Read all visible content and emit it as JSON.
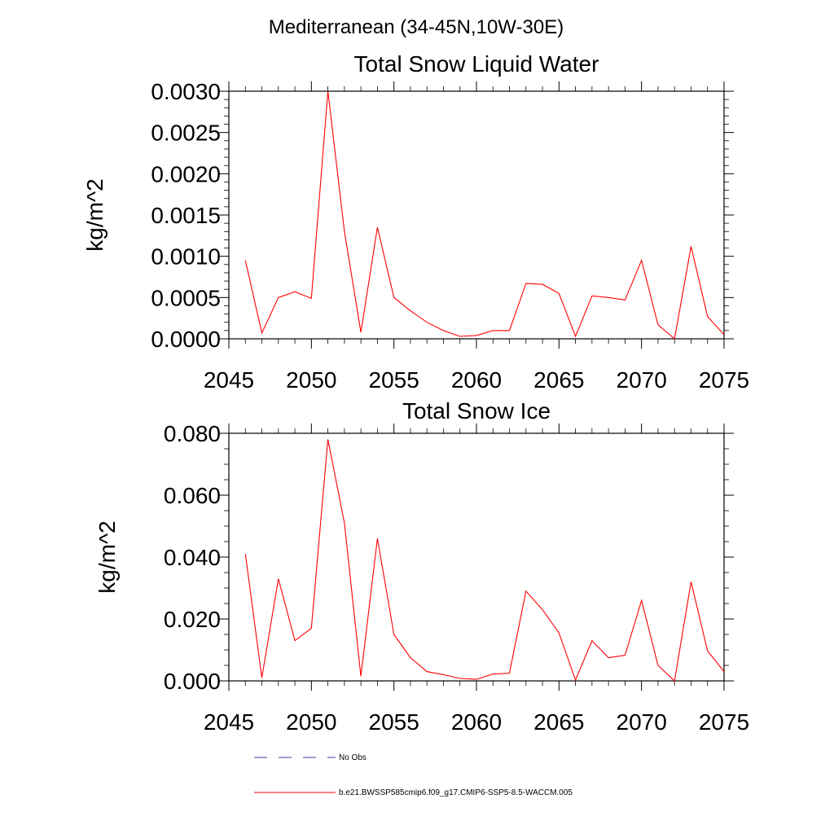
{
  "figure_title": "Mediterranean (34-45N,10W-30E)",
  "chart_data": [
    {
      "type": "line",
      "title": "Total Snow Liquid Water",
      "xlabel": "",
      "ylabel": "kg/m^2",
      "xlim": [
        2045,
        2075
      ],
      "ylim": [
        0,
        0.003
      ],
      "xticks": [
        "2045",
        "2050",
        "2055",
        "2060",
        "2065",
        "2070",
        "2075"
      ],
      "yticks": [
        "0.0000",
        "0.0005",
        "0.0010",
        "0.0015",
        "0.0020",
        "0.0025",
        "0.0030"
      ],
      "series": [
        {
          "name": "b.e21.BWSSP585cmip6.f09_g17.CMIP6-SSP5-8.5-WACCM.005",
          "color": "#ff0000",
          "x": [
            2046,
            2047,
            2048,
            2049,
            2050,
            2051,
            2052,
            2053,
            2054,
            2055,
            2056,
            2057,
            2058,
            2059,
            2060,
            2061,
            2062,
            2063,
            2064,
            2065,
            2066,
            2067,
            2068,
            2069,
            2070,
            2071,
            2072,
            2073,
            2074,
            2075
          ],
          "values": [
            0.00095,
            7e-05,
            0.0005,
            0.00057,
            0.00049,
            0.003,
            0.0013,
            8e-05,
            0.00135,
            0.0005,
            0.00034,
            0.0002,
            0.0001,
            3e-05,
            4e-05,
            0.0001,
            0.0001,
            0.00067,
            0.00066,
            0.00055,
            3e-05,
            0.00052,
            0.0005,
            0.00047,
            0.00095,
            0.00017,
            0.0,
            0.00112,
            0.00027,
            5e-05
          ]
        }
      ]
    },
    {
      "type": "line",
      "title": "Total Snow Ice",
      "xlabel": "",
      "ylabel": "kg/m^2",
      "xlim": [
        2045,
        2075
      ],
      "ylim": [
        0,
        0.08
      ],
      "xticks": [
        "2045",
        "2050",
        "2055",
        "2060",
        "2065",
        "2070",
        "2075"
      ],
      "yticks": [
        "0.000",
        "0.020",
        "0.040",
        "0.060",
        "0.080"
      ],
      "series": [
        {
          "name": "b.e21.BWSSP585cmip6.f09_g17.CMIP6-SSP5-8.5-WACCM.005",
          "color": "#ff0000",
          "x": [
            2046,
            2047,
            2048,
            2049,
            2050,
            2051,
            2052,
            2053,
            2054,
            2055,
            2056,
            2057,
            2058,
            2059,
            2060,
            2061,
            2062,
            2063,
            2064,
            2065,
            2066,
            2067,
            2068,
            2069,
            2070,
            2071,
            2072,
            2073,
            2074,
            2075
          ],
          "values": [
            0.041,
            0.001,
            0.033,
            0.013,
            0.017,
            0.078,
            0.051,
            0.0015,
            0.046,
            0.015,
            0.0075,
            0.003,
            0.002,
            0.0008,
            0.0005,
            0.0022,
            0.0025,
            0.029,
            0.023,
            0.0155,
            0.0003,
            0.013,
            0.0075,
            0.0083,
            0.026,
            0.005,
            0.0,
            0.032,
            0.0097,
            0.003
          ]
        }
      ]
    }
  ],
  "legend": [
    {
      "label": "No Obs",
      "color": "#3b3b99",
      "dash": "dashed"
    },
    {
      "label": "b.e21.BWSSP585cmip6.f09_g17.CMIP6-SSP5-8.5-WACCM.005",
      "color": "#ff0000",
      "dash": "solid"
    }
  ]
}
